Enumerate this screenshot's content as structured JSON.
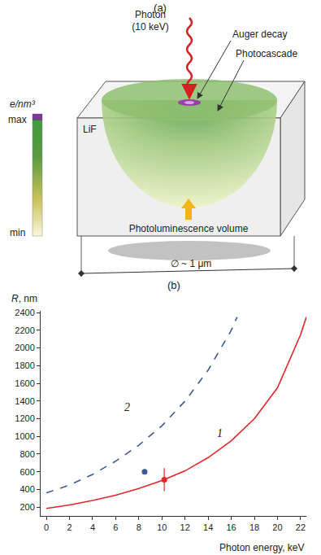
{
  "diagram": {
    "panel_label": "(a)",
    "photon": [
      "Photon",
      "(10 keV)"
    ],
    "auger": "Auger decay",
    "cascade": "Photocascade",
    "scale_title": "e/nm³",
    "scale_max": "max",
    "scale_min": "min",
    "material": "LiF",
    "volume": "Photoluminescence volume",
    "size": "∅ ~ 1 μm"
  },
  "chart_data": {
    "type": "line",
    "title": "(b)",
    "x_label": "Photon energy, keV",
    "y_label": "R, nm",
    "xlim": [
      -0.5,
      22.5
    ],
    "xticks": [
      0,
      2,
      4,
      6,
      8,
      10,
      12,
      14,
      16,
      18,
      20,
      22
    ],
    "ylim": [
      100,
      2420
    ],
    "yticks": [
      200,
      400,
      600,
      800,
      1000,
      1200,
      1400,
      1600,
      1800,
      2000,
      2200,
      2400
    ],
    "grid": false,
    "series": [
      {
        "type": "line",
        "line_style": "solid",
        "color": "#e3262b",
        "x": [
          0,
          2,
          4,
          6,
          8,
          10,
          12,
          14,
          16,
          18,
          20,
          22,
          22.5
        ],
        "values": [
          185,
          225,
          275,
          335,
          410,
          500,
          610,
          760,
          950,
          1200,
          1550,
          2150,
          2350
        ]
      },
      {
        "type": "line",
        "line_style": "dashed",
        "color": "#3d5a96",
        "x": [
          0,
          2,
          4,
          6,
          8,
          10,
          12,
          14,
          16,
          16.5
        ],
        "values": [
          360,
          450,
          570,
          720,
          900,
          1120,
          1400,
          1750,
          2200,
          2350
        ]
      },
      {
        "type": "scatter",
        "marker": "circle",
        "color": "#3d5a96",
        "x": [
          8.5
        ],
        "values": [
          600
        ]
      },
      {
        "type": "scatter",
        "marker": "circle",
        "color": "#e3262b",
        "x": [
          10.2
        ],
        "values": [
          510
        ],
        "error": [
          130
        ]
      }
    ],
    "annotations": [
      {
        "text": "1",
        "x": 15,
        "y": 1030
      },
      {
        "text": "2",
        "x": 7,
        "y": 1330
      }
    ]
  }
}
